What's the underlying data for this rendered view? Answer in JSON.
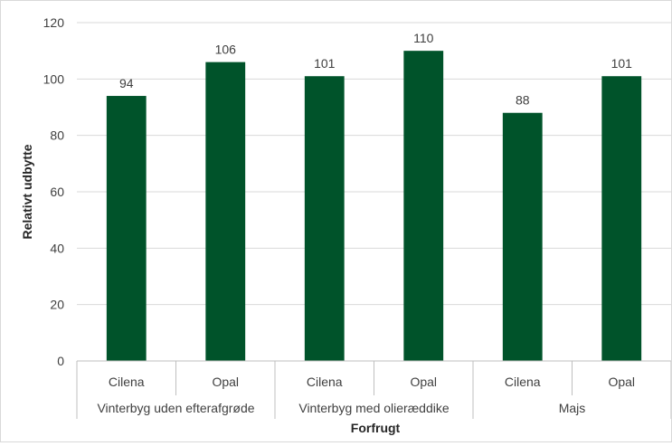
{
  "chart_data": {
    "type": "bar",
    "title": "",
    "xlabel": "Forfrugt",
    "ylabel": "Relativt udbytte",
    "ylim": [
      0,
      120
    ],
    "yticks": [
      0,
      20,
      40,
      60,
      80,
      100,
      120
    ],
    "grid": true,
    "legend": "none",
    "bar_color": "#00532a",
    "groups": [
      {
        "label": "Vinterbyg uden efterafgrøde",
        "categories": [
          "Cilena",
          "Opal"
        ],
        "values": [
          94,
          106
        ]
      },
      {
        "label": "Vinterbyg med olieræddike",
        "categories": [
          "Cilena",
          "Opal"
        ],
        "values": [
          101,
          110
        ]
      },
      {
        "label": "Majs",
        "categories": [
          "Cilena",
          "Opal"
        ],
        "values": [
          88,
          101
        ]
      }
    ]
  }
}
